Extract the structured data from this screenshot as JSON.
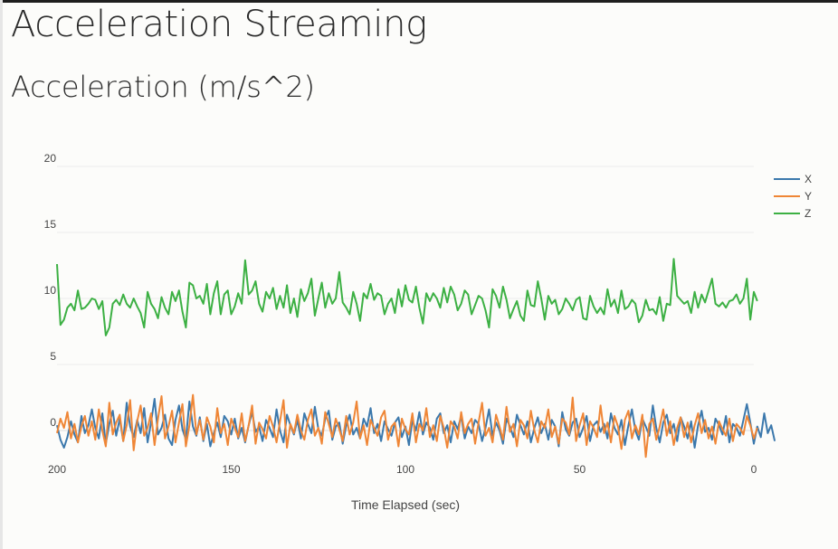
{
  "page": {
    "title": "Acceleration Streaming"
  },
  "chart_heading": "Acceleration (m/s^2)",
  "chart_data": {
    "type": "line",
    "title": "Acceleration (m/s^2)",
    "xlabel": "Time Elapsed (sec)",
    "ylabel": "",
    "xlim": [
      200,
      0
    ],
    "ylim": [
      -1,
      20.5
    ],
    "x_ticks": [
      200,
      150,
      100,
      50,
      0
    ],
    "x_tick_labels": [
      "200",
      "150",
      "100",
      "50",
      "0"
    ],
    "y_ticks": [
      0,
      5,
      10,
      15,
      20
    ],
    "y_tick_labels": [
      "0",
      "5",
      "10",
      "15",
      "20"
    ],
    "grid": true,
    "legend_position": "top-right",
    "x_start": 200,
    "x_step": 1,
    "series": [
      {
        "name": "X",
        "color": "#3b78ac",
        "values": [
          0.4,
          -0.7,
          -1.3,
          -0.5,
          0.7,
          -0.3,
          -0.9,
          1.1,
          -0.2,
          0.4,
          1.6,
          0.2,
          -0.6,
          1.3,
          -1.0,
          0.5,
          1.5,
          -0.4,
          0.9,
          -0.8,
          2.1,
          0.3,
          -0.5,
          0.8,
          -0.2,
          1.7,
          -0.9,
          0.6,
          2.4,
          -0.3,
          0.2,
          1.2,
          -0.6,
          -1.1,
          0.8,
          1.9,
          0.1,
          -0.7,
          2.2,
          0.3,
          -0.4,
          1.0,
          -0.8,
          0.5,
          -1.2,
          -0.2,
          0.6,
          -0.5,
          1.1,
          0.7,
          -0.3,
          0.9,
          -0.6,
          0.2,
          -0.9,
          0.4,
          1.4,
          -0.1,
          0.3,
          -0.8,
          0.8,
          0.2,
          -0.5,
          1.6,
          0.0,
          -0.9,
          1.2,
          0.4,
          -0.3,
          0.8,
          -0.6,
          1.3,
          0.5,
          -0.2,
          1.8,
          0.1,
          -0.4,
          0.9,
          1.5,
          -0.7,
          0.3,
          0.6,
          -1.0,
          0.4,
          1.2,
          -0.3,
          0.2,
          -0.6,
          0.9,
          0.3,
          1.7,
          -0.2,
          0.5,
          -0.8,
          0.7,
          0.1,
          -0.4,
          0.6,
          1.0,
          -0.5,
          0.3,
          -1.1,
          0.8,
          0.0,
          1.4,
          -0.3,
          0.6,
          0.2,
          -0.7,
          0.9,
          1.3,
          -0.2,
          0.4,
          -0.9,
          0.7,
          0.1,
          1.1,
          -0.6,
          0.3,
          -0.2,
          0.8,
          0.5,
          -0.8,
          0.2,
          1.6,
          -0.4,
          0.6,
          0.0,
          -1.0,
          0.9,
          0.3,
          -0.5,
          1.2,
          0.4,
          -0.3,
          0.7,
          -0.9,
          0.2,
          1.0,
          -0.2,
          0.5,
          -0.7,
          0.8,
          0.3,
          -1.2,
          1.4,
          0.1,
          -0.4,
          0.6,
          0.9,
          -0.5,
          0.2,
          1.1,
          -0.8,
          0.4,
          0.7,
          -0.1,
          0.5,
          -0.6,
          1.3,
          0.2,
          -0.3,
          0.8,
          -1.1,
          0.4,
          1.6,
          0.0,
          -0.7,
          0.9,
          0.3,
          -0.4,
          1.9,
          0.2,
          -0.9,
          0.6,
          1.2,
          -0.2,
          0.5,
          -0.8,
          1.0,
          0.3,
          -0.6,
          0.7,
          -1.3,
          0.4,
          1.5,
          -0.1,
          0.2,
          -0.7,
          0.9,
          0.4,
          -0.3,
          1.1,
          -0.9,
          0.5,
          0.2,
          -0.4,
          0.8,
          2.0,
          0.6,
          -1.0,
          0.3,
          -0.5,
          1.3,
          -0.2,
          0.4,
          -0.8
        ]
      },
      {
        "name": "Y",
        "color": "#ef8636",
        "values": [
          -0.2,
          0.9,
          0.2,
          1.4,
          -0.6,
          0.5,
          -0.9,
          0.3,
          1.1,
          -0.4,
          0.7,
          -0.7,
          1.6,
          0.0,
          -1.2,
          2.1,
          -0.3,
          0.6,
          1.2,
          -0.8,
          0.4,
          2.3,
          -1.5,
          0.7,
          1.9,
          -0.4,
          0.2,
          1.3,
          -1.1,
          0.9,
          2.6,
          -0.6,
          0.3,
          1.5,
          -0.9,
          0.6,
          2.0,
          -1.2,
          0.4,
          2.7,
          -0.3,
          0.8,
          -0.7,
          1.0,
          0.3,
          -0.9,
          1.7,
          -0.2,
          0.5,
          -1.1,
          0.9,
          0.2,
          -0.5,
          1.3,
          -0.8,
          0.4,
          1.9,
          -1.0,
          0.6,
          0.1,
          -0.6,
          1.1,
          0.3,
          -0.9,
          0.7,
          2.3,
          -1.3,
          0.5,
          -0.2,
          1.2,
          0.0,
          -0.7,
          0.8,
          1.6,
          -0.4,
          0.2,
          -1.0,
          1.4,
          0.5,
          -0.5,
          0.9,
          0.1,
          -0.8,
          1.1,
          -0.3,
          0.6,
          2.2,
          -0.6,
          0.4,
          -1.1,
          0.8,
          0.2,
          -0.4,
          1.0,
          1.5,
          -0.7,
          0.3,
          0.6,
          -1.2,
          0.9,
          0.1,
          -0.3,
          1.3,
          -0.9,
          0.5,
          0.0,
          1.7,
          -0.5,
          0.4,
          -0.8,
          1.1,
          0.2,
          -1.3,
          0.7,
          0.3,
          -0.6,
          1.4,
          -0.2,
          0.5,
          0.9,
          -1.0,
          0.6,
          2.1,
          -0.4,
          0.2,
          -0.9,
          1.2,
          0.3,
          -0.7,
          1.8,
          -0.1,
          0.5,
          -1.2,
          0.8,
          0.4,
          -0.6,
          1.5,
          0.0,
          -0.9,
          0.7,
          0.2,
          1.6,
          -0.5,
          0.3,
          -1.0,
          0.9,
          0.6,
          -0.3,
          2.5,
          -0.8,
          0.4,
          1.3,
          -1.1,
          0.7,
          0.2,
          -0.5,
          1.9,
          -0.2,
          0.6,
          -0.9,
          1.1,
          0.3,
          -1.4,
          0.8,
          1.5,
          -0.6,
          0.4,
          -0.3,
          1.2,
          -2.0,
          0.5,
          0.9,
          -0.7,
          0.3,
          1.6,
          -0.4,
          0.7,
          -1.1,
          0.2,
          1.0,
          -0.5,
          0.6,
          -0.9,
          0.4,
          1.3,
          -0.2,
          0.8,
          -0.6,
          0.3,
          -1.0,
          0.7,
          0.1,
          -0.4,
          0.9,
          -0.8,
          0.5,
          0.2,
          -0.3,
          1.1,
          0.4,
          -0.6,
          0.2
        ]
      },
      {
        "name": "Z",
        "color": "#3cb043",
        "values": [
          12.6,
          8.0,
          8.4,
          9.3,
          9.6,
          9.1,
          10.6,
          9.2,
          9.3,
          9.6,
          10.0,
          9.9,
          9.2,
          9.8,
          7.2,
          7.8,
          9.6,
          9.9,
          9.5,
          10.3,
          9.6,
          9.3,
          10.0,
          9.4,
          8.9,
          7.8,
          10.5,
          9.6,
          9.2,
          8.5,
          10.1,
          9.3,
          8.8,
          10.5,
          9.8,
          10.6,
          9.0,
          7.8,
          11.2,
          11.0,
          10.0,
          10.2,
          9.6,
          11.1,
          8.8,
          10.4,
          11.3,
          8.8,
          10.3,
          10.6,
          8.8,
          9.4,
          10.4,
          9.6,
          12.9,
          10.3,
          10.6,
          11.3,
          9.6,
          9.0,
          10.5,
          10.0,
          10.8,
          9.2,
          10.2,
          9.3,
          11.0,
          8.9,
          10.0,
          8.6,
          10.7,
          9.8,
          10.4,
          11.5,
          8.7,
          10.0,
          11.2,
          9.3,
          10.4,
          9.6,
          10.0,
          12.0,
          9.7,
          9.3,
          8.8,
          10.5,
          9.6,
          8.3,
          10.4,
          10.0,
          11.1,
          9.9,
          10.4,
          10.2,
          8.8,
          9.6,
          10.0,
          8.9,
          10.7,
          9.4,
          11.0,
          9.9,
          9.7,
          10.9,
          9.3,
          8.1,
          10.4,
          9.8,
          10.4,
          10.0,
          9.3,
          10.8,
          9.7,
          10.9,
          10.3,
          9.1,
          9.6,
          10.6,
          10.3,
          8.8,
          9.5,
          10.2,
          10.0,
          9.1,
          7.8,
          10.7,
          10.2,
          9.3,
          10.9,
          9.9,
          8.5,
          9.2,
          9.8,
          8.7,
          8.3,
          10.6,
          9.5,
          9.4,
          11.3,
          10.0,
          8.4,
          10.2,
          9.6,
          9.9,
          8.8,
          9.2,
          10.0,
          9.6,
          9.1,
          9.9,
          10.1,
          8.5,
          8.4,
          10.2,
          9.4,
          8.9,
          9.3,
          8.8,
          10.7,
          9.4,
          9.9,
          8.9,
          10.6,
          9.2,
          9.4,
          9.9,
          9.6,
          8.2,
          8.7,
          9.9,
          9.1,
          9.2,
          8.8,
          10.1,
          8.3,
          9.6,
          9.5,
          13.0,
          10.2,
          9.9,
          9.6,
          9.8,
          8.9,
          10.5,
          9.3,
          10.3,
          9.7,
          10.6,
          11.5,
          9.6,
          9.4,
          9.7,
          9.3,
          9.8,
          9.9,
          10.3,
          9.6,
          10.0,
          11.5,
          8.4,
          10.5,
          9.8
        ]
      }
    ]
  }
}
